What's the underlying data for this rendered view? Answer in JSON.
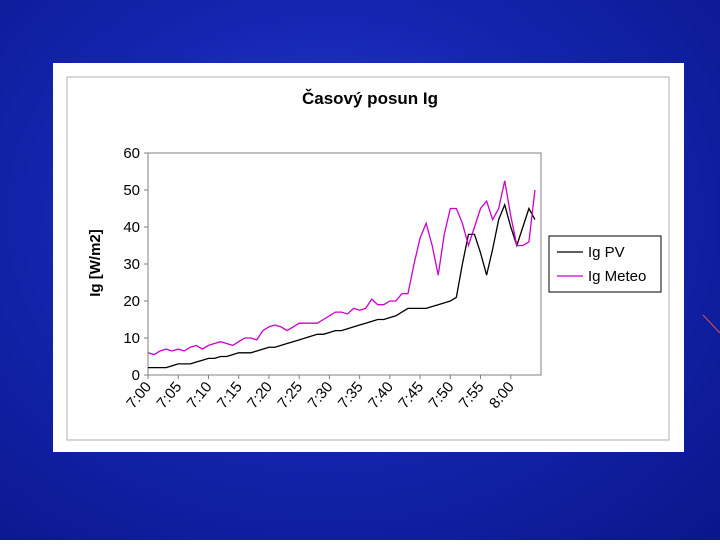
{
  "chart_data": {
    "type": "line",
    "title": "Časový posun Ig",
    "y_label": "Ig [W/m2]",
    "categories": [
      "7:00",
      null,
      null,
      null,
      null,
      "7:05",
      null,
      null,
      null,
      null,
      "7:10",
      null,
      null,
      null,
      null,
      "7:15",
      null,
      null,
      null,
      null,
      "7:20",
      null,
      null,
      null,
      null,
      "7:25",
      null,
      null,
      null,
      null,
      "7:30",
      null,
      null,
      null,
      null,
      "7:35",
      null,
      null,
      null,
      null,
      "7:40",
      null,
      null,
      null,
      null,
      "7:45",
      null,
      null,
      null,
      null,
      "7:50",
      null,
      null,
      null,
      null,
      "7:55",
      null,
      null,
      null,
      null,
      "8:00",
      null,
      null,
      null,
      null
    ],
    "series": [
      {
        "name": "Ig PV",
        "color": "#000000",
        "values": [
          2,
          2,
          2,
          2,
          2.5,
          3,
          3,
          3,
          3.5,
          4,
          4.5,
          4.5,
          5,
          5,
          5.5,
          6,
          6,
          6,
          6.5,
          7,
          7.5,
          7.5,
          8,
          8.5,
          9,
          9.5,
          10,
          10.5,
          11,
          11,
          11.5,
          12,
          12,
          12.5,
          13,
          13.5,
          14,
          14.5,
          15,
          15,
          15.5,
          16,
          17,
          18,
          18,
          18,
          18,
          18.5,
          19,
          19.5,
          20,
          21,
          30,
          38,
          38,
          33,
          27,
          34,
          42,
          46,
          40,
          35,
          40,
          45,
          42
        ]
      },
      {
        "name": "Ig Meteo",
        "color": "#cc00cc",
        "values": [
          6,
          5.5,
          6.5,
          7,
          6.5,
          7,
          6.5,
          7.5,
          8,
          7,
          8,
          8.5,
          9,
          8.5,
          8,
          9,
          10,
          10,
          9.5,
          12,
          13,
          13.5,
          13,
          12,
          13,
          14,
          14,
          14,
          14,
          15,
          16,
          17,
          17,
          16.5,
          18,
          17.5,
          18,
          20.5,
          19,
          19,
          20,
          20,
          22,
          22,
          30,
          37,
          41,
          35,
          27,
          38,
          45,
          45,
          41,
          35,
          40,
          45,
          47,
          42,
          45,
          52.5,
          43,
          35,
          35,
          36,
          50
        ]
      }
    ],
    "ylim": [
      0,
      60
    ],
    "yticks": [
      0,
      10,
      20,
      30,
      40,
      50,
      60
    ],
    "legend": "right",
    "grid": false
  }
}
